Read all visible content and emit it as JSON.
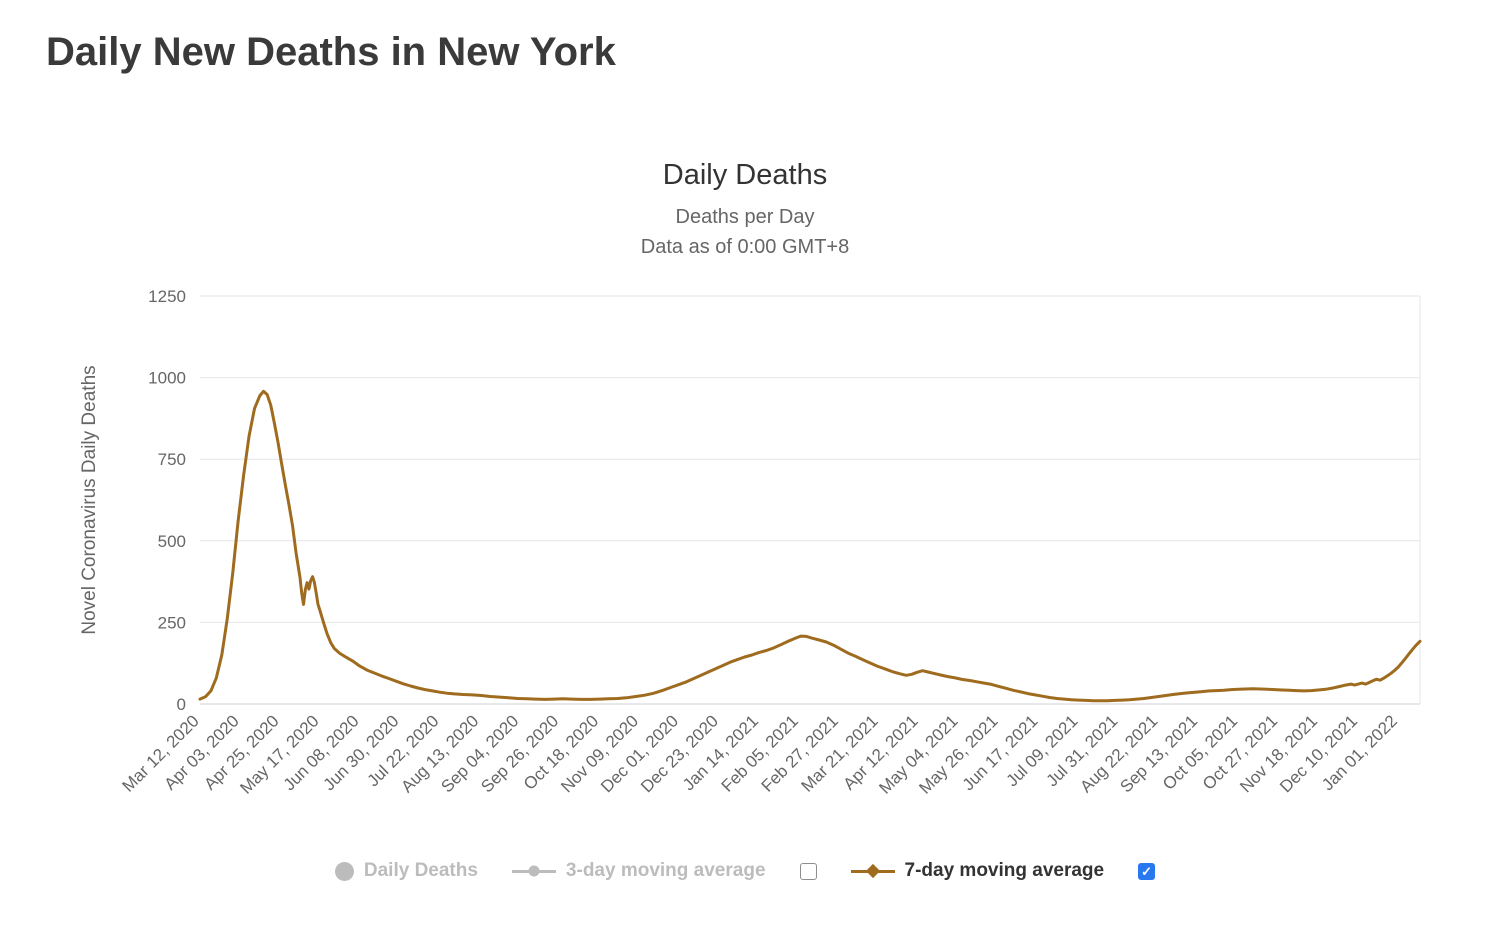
{
  "page": {
    "title": "Daily New Deaths in New York"
  },
  "chart": {
    "title": "Daily Deaths",
    "subtitle_line1": "Deaths per Day",
    "subtitle_line2": "Data as of 0:00 GMT+8",
    "y_axis_title": "Novel Coronavirus Daily Deaths"
  },
  "legend": {
    "items": [
      {
        "label": "Daily Deaths",
        "marker": "circle",
        "enabled": false
      },
      {
        "label": "3-day moving average",
        "marker": "line-circle",
        "enabled": false,
        "checkbox": "unchecked"
      },
      {
        "label": "7-day moving average",
        "marker": "line-diamond",
        "enabled": true,
        "checkbox": "checked"
      }
    ]
  },
  "icons": {
    "check": "✓"
  },
  "colors": {
    "heading_text": "#3a3a3a",
    "title_text": "#333333",
    "subtitle_text": "#666666",
    "axis_text": "#666666",
    "grid_line": "#e6e6e6",
    "axis_line": "#ccd1d9",
    "series_line": "#9e6b1f",
    "legend_disabled": "#bcbcbc",
    "legend_enabled": "#333333",
    "checkbox_checked": "#2878f0",
    "checkbox_border": "#8e8e8e"
  },
  "chart_data": {
    "type": "line",
    "title": "Daily Deaths",
    "subtitle": [
      "Deaths per Day",
      "Data as of 0:00 GMT+8"
    ],
    "xlabel": "",
    "ylabel": "Novel Coronavirus Daily Deaths",
    "ylim": [
      0,
      1250
    ],
    "y_ticks": [
      0,
      250,
      500,
      750,
      1000,
      1250
    ],
    "grid": "horizontal",
    "legend_position": "bottom",
    "x_tick_interval_days": 22,
    "x_range_days": [
      0,
      672
    ],
    "x_tick_labels": [
      "Mar 12, 2020",
      "Apr 03, 2020",
      "Apr 25, 2020",
      "May 17, 2020",
      "Jun 08, 2020",
      "Jun 30, 2020",
      "Jul 22, 2020",
      "Aug 13, 2020",
      "Sep 04, 2020",
      "Sep 26, 2020",
      "Oct 18, 2020",
      "Nov 09, 2020",
      "Dec 01, 2020",
      "Dec 23, 2020",
      "Jan 14, 2021",
      "Feb 05, 2021",
      "Feb 27, 2021",
      "Mar 21, 2021",
      "Apr 12, 2021",
      "May 04, 2021",
      "May 26, 2021",
      "Jun 17, 2021",
      "Jul 09, 2021",
      "Jul 31, 2021",
      "Aug 22, 2021",
      "Sep 13, 2021",
      "Oct 05, 2021",
      "Oct 27, 2021",
      "Nov 18, 2021",
      "Dec 10, 2021",
      "Jan 01, 2022"
    ],
    "series": [
      {
        "name": "Daily Deaths",
        "visible": false,
        "points": []
      },
      {
        "name": "3-day moving average",
        "visible": false,
        "points": []
      },
      {
        "name": "7-day moving average",
        "visible": true,
        "color": "#9e6b1f",
        "points": [
          [
            0,
            15
          ],
          [
            3,
            22
          ],
          [
            6,
            40
          ],
          [
            9,
            80
          ],
          [
            12,
            150
          ],
          [
            15,
            260
          ],
          [
            18,
            400
          ],
          [
            21,
            560
          ],
          [
            24,
            700
          ],
          [
            27,
            820
          ],
          [
            30,
            905
          ],
          [
            33,
            945
          ],
          [
            35,
            958
          ],
          [
            37,
            948
          ],
          [
            39,
            915
          ],
          [
            41,
            860
          ],
          [
            43,
            800
          ],
          [
            45,
            735
          ],
          [
            47,
            672
          ],
          [
            49,
            610
          ],
          [
            51,
            545
          ],
          [
            53,
            460
          ],
          [
            55,
            390
          ],
          [
            56,
            340
          ],
          [
            57,
            305
          ],
          [
            58,
            350
          ],
          [
            59,
            372
          ],
          [
            60,
            352
          ],
          [
            61,
            378
          ],
          [
            62,
            390
          ],
          [
            63,
            372
          ],
          [
            64,
            340
          ],
          [
            65,
            305
          ],
          [
            66,
            288
          ],
          [
            68,
            250
          ],
          [
            70,
            215
          ],
          [
            72,
            188
          ],
          [
            74,
            170
          ],
          [
            77,
            155
          ],
          [
            80,
            145
          ],
          [
            84,
            132
          ],
          [
            88,
            116
          ],
          [
            92,
            104
          ],
          [
            96,
            95
          ],
          [
            100,
            86
          ],
          [
            104,
            78
          ],
          [
            108,
            70
          ],
          [
            112,
            62
          ],
          [
            116,
            55
          ],
          [
            120,
            49
          ],
          [
            124,
            44
          ],
          [
            128,
            40
          ],
          [
            132,
            36
          ],
          [
            136,
            33
          ],
          [
            140,
            31
          ],
          [
            145,
            29
          ],
          [
            150,
            28
          ],
          [
            155,
            26
          ],
          [
            160,
            23
          ],
          [
            165,
            21
          ],
          [
            170,
            19
          ],
          [
            175,
            17
          ],
          [
            180,
            16
          ],
          [
            185,
            15
          ],
          [
            190,
            14
          ],
          [
            195,
            15
          ],
          [
            200,
            16
          ],
          [
            205,
            15
          ],
          [
            210,
            14
          ],
          [
            215,
            14
          ],
          [
            220,
            15
          ],
          [
            225,
            16
          ],
          [
            230,
            17
          ],
          [
            235,
            19
          ],
          [
            240,
            23
          ],
          [
            245,
            27
          ],
          [
            250,
            33
          ],
          [
            255,
            42
          ],
          [
            260,
            52
          ],
          [
            264,
            60
          ],
          [
            268,
            68
          ],
          [
            272,
            78
          ],
          [
            276,
            88
          ],
          [
            280,
            98
          ],
          [
            284,
            108
          ],
          [
            288,
            118
          ],
          [
            292,
            128
          ],
          [
            296,
            136
          ],
          [
            300,
            144
          ],
          [
            304,
            150
          ],
          [
            308,
            158
          ],
          [
            312,
            164
          ],
          [
            316,
            172
          ],
          [
            320,
            182
          ],
          [
            324,
            192
          ],
          [
            328,
            202
          ],
          [
            331,
            208
          ],
          [
            334,
            207
          ],
          [
            337,
            202
          ],
          [
            341,
            196
          ],
          [
            345,
            190
          ],
          [
            349,
            180
          ],
          [
            353,
            168
          ],
          [
            357,
            156
          ],
          [
            361,
            146
          ],
          [
            365,
            136
          ],
          [
            369,
            126
          ],
          [
            373,
            116
          ],
          [
            377,
            108
          ],
          [
            381,
            100
          ],
          [
            385,
            93
          ],
          [
            389,
            88
          ],
          [
            392,
            91
          ],
          [
            395,
            97
          ],
          [
            398,
            102
          ],
          [
            401,
            98
          ],
          [
            404,
            94
          ],
          [
            408,
            89
          ],
          [
            412,
            84
          ],
          [
            416,
            80
          ],
          [
            420,
            75
          ],
          [
            424,
            72
          ],
          [
            428,
            68
          ],
          [
            432,
            64
          ],
          [
            436,
            60
          ],
          [
            440,
            54
          ],
          [
            444,
            48
          ],
          [
            448,
            42
          ],
          [
            452,
            37
          ],
          [
            456,
            32
          ],
          [
            460,
            28
          ],
          [
            464,
            24
          ],
          [
            468,
            20
          ],
          [
            472,
            17
          ],
          [
            476,
            15
          ],
          [
            480,
            13
          ],
          [
            484,
            12
          ],
          [
            488,
            11
          ],
          [
            492,
            10
          ],
          [
            496,
            10
          ],
          [
            500,
            10
          ],
          [
            504,
            11
          ],
          [
            508,
            12
          ],
          [
            512,
            13
          ],
          [
            516,
            15
          ],
          [
            520,
            17
          ],
          [
            524,
            20
          ],
          [
            528,
            23
          ],
          [
            532,
            26
          ],
          [
            536,
            29
          ],
          [
            540,
            32
          ],
          [
            544,
            34
          ],
          [
            548,
            36
          ],
          [
            552,
            38
          ],
          [
            556,
            40
          ],
          [
            560,
            41
          ],
          [
            564,
            42
          ],
          [
            568,
            44
          ],
          [
            572,
            45
          ],
          [
            576,
            46
          ],
          [
            580,
            47
          ],
          [
            584,
            46
          ],
          [
            588,
            45
          ],
          [
            592,
            44
          ],
          [
            596,
            43
          ],
          [
            600,
            42
          ],
          [
            604,
            41
          ],
          [
            608,
            40
          ],
          [
            612,
            41
          ],
          [
            616,
            43
          ],
          [
            620,
            45
          ],
          [
            624,
            49
          ],
          [
            628,
            54
          ],
          [
            631,
            58
          ],
          [
            634,
            61
          ],
          [
            636,
            58
          ],
          [
            638,
            61
          ],
          [
            640,
            64
          ],
          [
            642,
            61
          ],
          [
            644,
            66
          ],
          [
            646,
            71
          ],
          [
            648,
            76
          ],
          [
            650,
            73
          ],
          [
            652,
            79
          ],
          [
            654,
            86
          ],
          [
            656,
            94
          ],
          [
            658,
            103
          ],
          [
            660,
            113
          ],
          [
            662,
            126
          ],
          [
            664,
            140
          ],
          [
            666,
            154
          ],
          [
            668,
            168
          ],
          [
            670,
            181
          ],
          [
            672,
            192
          ]
        ]
      }
    ]
  }
}
